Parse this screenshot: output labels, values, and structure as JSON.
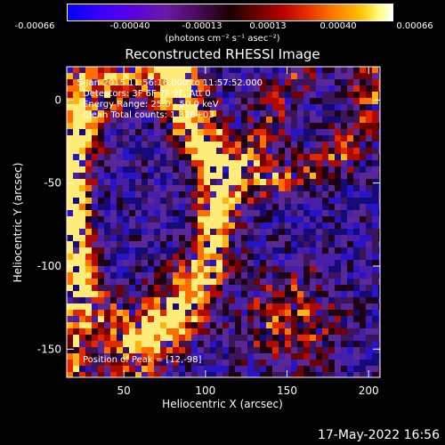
{
  "colorbar": {
    "ticks": [
      "-0.00066",
      "-0.00040",
      "-0.00013",
      "0.00013",
      "0.00040",
      "0.00066"
    ],
    "unit_label": "(photons cm⁻² s⁻¹ asec⁻²)"
  },
  "title": "Reconstructed RHESSI Image",
  "annotation": {
    "line1": "5-Jan-2015 11:56:16.000 to 11:57:52.000",
    "line2": "Detectors: 3F 6F 7F 9F, Att 0",
    "line3": "Energy Range: 25.0 - 50.0 keV",
    "line4": "Clean     Total counts: 1.32E+03",
    "peak": "Position of Peak = [12,-98]"
  },
  "footer": {
    "date": "17-May-2022 16:56"
  },
  "chart_data": {
    "type": "heatmap",
    "title": "Reconstructed RHESSI Image",
    "xlabel": "Heliocentric X (arcsec)",
    "ylabel": "Heliocentric Y (arcsec)",
    "xlim": [
      15,
      207
    ],
    "ylim": [
      -167,
      20
    ],
    "xticks": [
      50,
      100,
      150,
      200
    ],
    "yticks": [
      0,
      -50,
      -100,
      -150
    ],
    "peak": [
      12,
      -98
    ],
    "colorbar_range": [
      -0.00066,
      0.00066
    ],
    "colors": {
      "background": "#000000",
      "low": "#0000ff",
      "mid_low": "#5a1a9a",
      "mid_high": "#c01000",
      "high": "#ffff80"
    }
  }
}
